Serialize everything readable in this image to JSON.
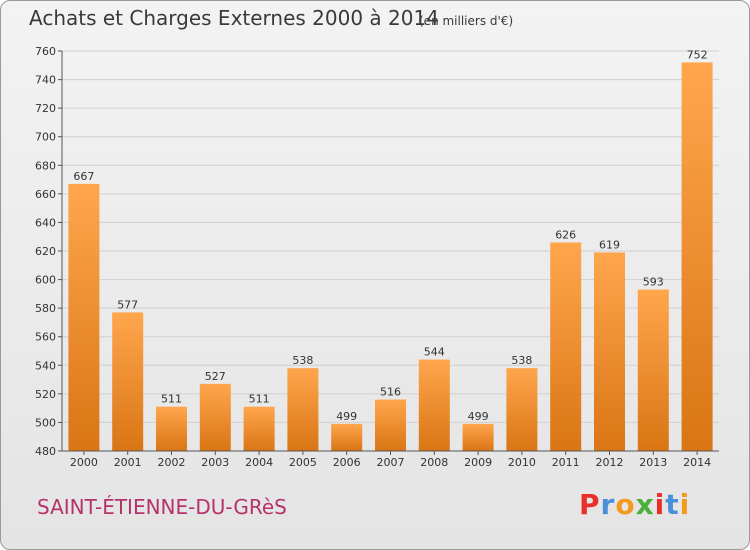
{
  "header": {
    "title": "Achats et Charges Externes 2000 à 2014",
    "subtitle": "(en milliers d'€)"
  },
  "footer": {
    "commune": "SAINT-ÉTIENNE-DU-GRèS",
    "logo": "Proxiti"
  },
  "colors": {
    "bar_light": "#ffa64d",
    "bar_dark": "#d97514",
    "commune_text": "#b5336b",
    "logo_letters": [
      "#e8302a",
      "#4a90d9",
      "#f39a1e",
      "#4caf3c",
      "#e8302a",
      "#4a90d9",
      "#f39a1e"
    ]
  },
  "chart_data": {
    "type": "bar",
    "categories": [
      "2000",
      "2001",
      "2002",
      "2003",
      "2004",
      "2005",
      "2006",
      "2007",
      "2008",
      "2009",
      "2010",
      "2011",
      "2012",
      "2013",
      "2014"
    ],
    "values": [
      667,
      577,
      511,
      527,
      511,
      538,
      499,
      516,
      544,
      499,
      538,
      626,
      619,
      593,
      752
    ],
    "ylim": [
      480,
      760
    ],
    "yticks": [
      480,
      500,
      520,
      540,
      560,
      580,
      600,
      620,
      640,
      660,
      680,
      700,
      720,
      740,
      760
    ],
    "grid": true
  }
}
